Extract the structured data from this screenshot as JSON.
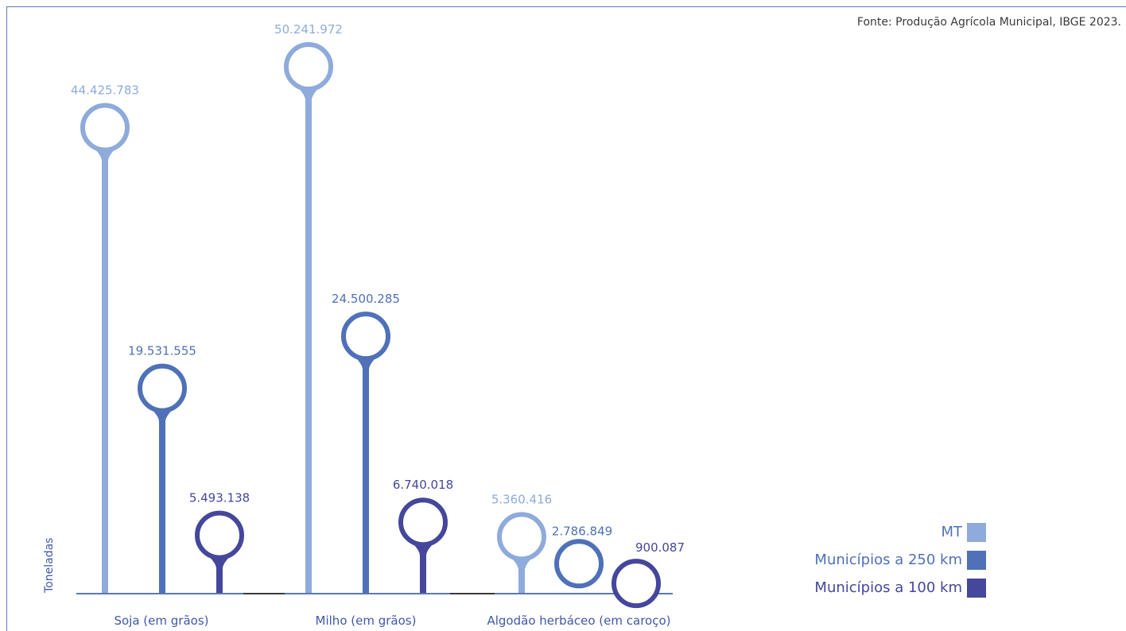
{
  "source_note": "Fonte: Produção Agrícola Municipal, IBGE 2023.",
  "colors": {
    "mt": "#8eabdb",
    "r250": "#4e71b8",
    "r100": "#44479b",
    "axis": "#5a78b8",
    "sep": "#3a3a3a"
  },
  "chart_data": {
    "type": "lollipop",
    "ylabel": "Toneladas",
    "categories": [
      "Soja (em grãos)",
      "Milho (em grãos)",
      "Algodão herbáceo (em caroço)"
    ],
    "series": [
      {
        "name": "MT",
        "values": [
          44425783,
          50241972,
          5360416
        ],
        "labels": [
          "44.425.783",
          "50.241.972",
          "5.360.416"
        ]
      },
      {
        "name": "Municípios a 250 km",
        "values": [
          19531555,
          24500285,
          2786849
        ],
        "labels": [
          "19.531.555",
          "24.500.285",
          "2.786.849"
        ]
      },
      {
        "name": "Municípios a 100 km",
        "values": [
          5493138,
          6740018,
          900087
        ],
        "labels": [
          "5.493.138",
          "6.740.018",
          "900.087"
        ]
      }
    ],
    "ylim": [
      0,
      55000000
    ],
    "legend": "bottom-right"
  }
}
